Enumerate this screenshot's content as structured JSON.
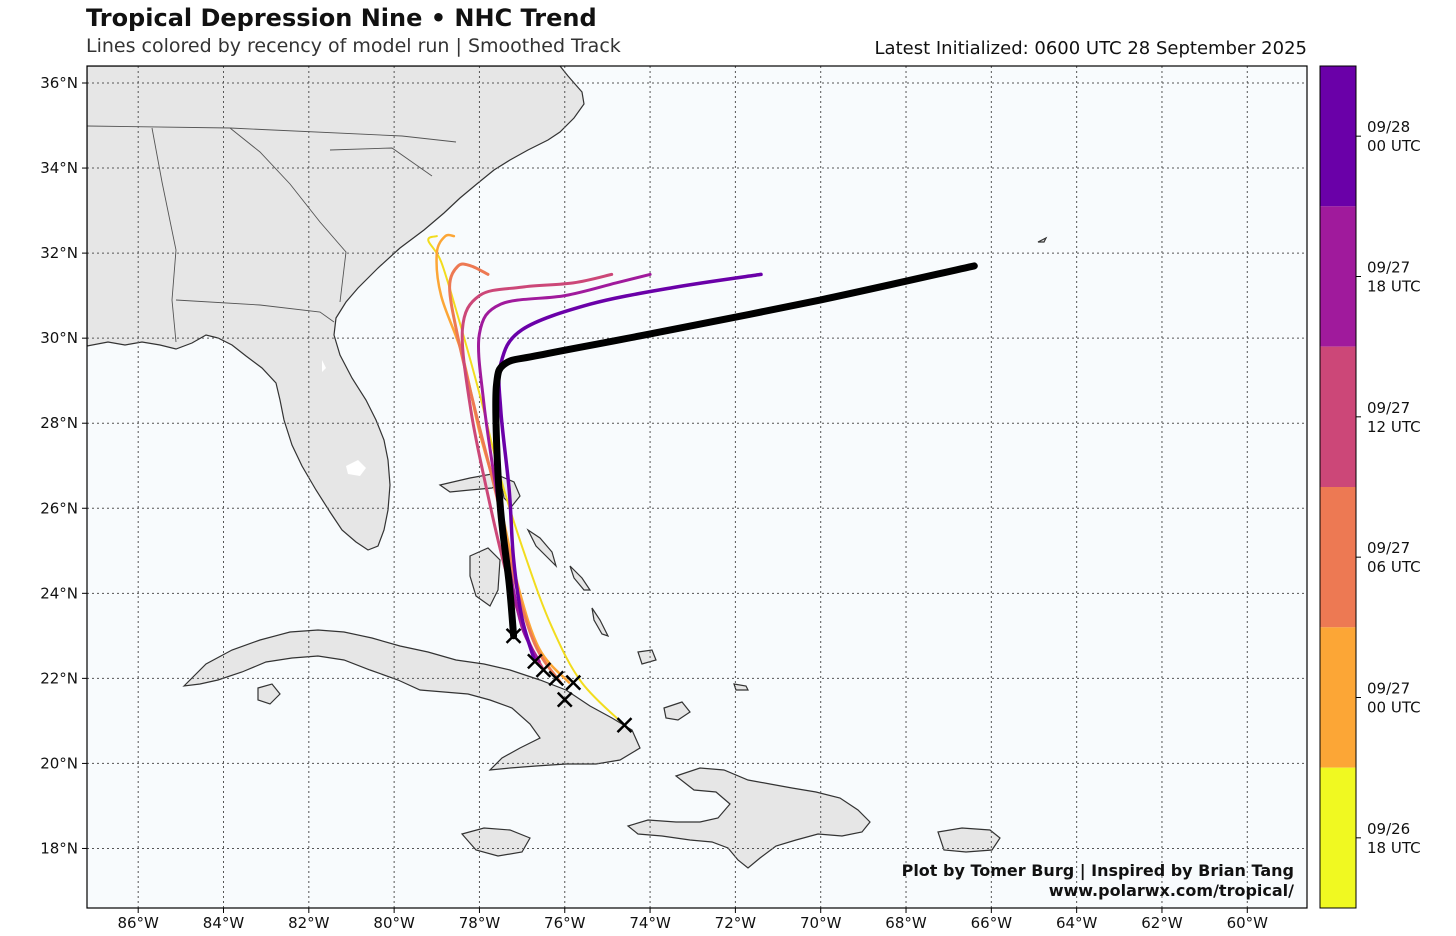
{
  "header": {
    "title": "Tropical Depression Nine • NHC Trend",
    "subtitle": "Lines colored by recency of model run | Smoothed Track",
    "initialized": "Latest Initialized: 0600 UTC 28 September 2025"
  },
  "map": {
    "lon_range": [
      -87.2,
      -58.6
    ],
    "lat_range": [
      16.6,
      36.4
    ],
    "lon_ticks": [
      "86°W",
      "84°W",
      "82°W",
      "80°W",
      "78°W",
      "76°W",
      "74°W",
      "72°W",
      "70°W",
      "68°W",
      "66°W",
      "64°W",
      "62°W",
      "60°W"
    ],
    "lat_ticks": [
      "18°N",
      "20°N",
      "22°N",
      "24°N",
      "26°N",
      "28°N",
      "30°N",
      "32°N",
      "34°N",
      "36°N"
    ],
    "grid": "dotted",
    "ocean_color": "#f8fbfd",
    "land_color": "#e6e6e6"
  },
  "credit": {
    "line1": "Plot by Tomer Burg | Inspired by Brian Tang",
    "line2": "www.polarwx.com/tropical/"
  },
  "colorbar": {
    "items": [
      {
        "l1": "09/28",
        "l2": "00 UTC",
        "color": "#6a00a8"
      },
      {
        "l1": "09/27",
        "l2": "18 UTC",
        "color": "#a01a9c"
      },
      {
        "l1": "09/27",
        "l2": "12 UTC",
        "color": "#cc4778"
      },
      {
        "l1": "09/27",
        "l2": "06 UTC",
        "color": "#ed7953"
      },
      {
        "l1": "09/27",
        "l2": "00 UTC",
        "color": "#fca636"
      },
      {
        "l1": "09/26",
        "l2": "18 UTC",
        "color": "#f0f921"
      }
    ]
  },
  "chart_data": {
    "type": "map-tracks",
    "latest_track_color": "#000000",
    "tracks": [
      {
        "run": "09/26 18 UTC",
        "color": "#f2dc1e",
        "width": 2,
        "points": [
          [
            -74.6,
            20.9
          ],
          [
            -75.6,
            21.9
          ],
          [
            -76.3,
            23.2
          ],
          [
            -76.9,
            24.8
          ],
          [
            -77.5,
            26.7
          ],
          [
            -78.0,
            28.7
          ],
          [
            -78.5,
            30.5
          ],
          [
            -78.9,
            31.8
          ],
          [
            -79.2,
            32.3
          ],
          [
            -79.0,
            32.4
          ]
        ]
      },
      {
        "run": "09/27 00 UTC",
        "color": "#fca636",
        "width": 2.5,
        "points": [
          [
            -75.9,
            21.9
          ],
          [
            -76.6,
            22.7
          ],
          [
            -77.1,
            24.2
          ],
          [
            -77.5,
            26.0
          ],
          [
            -78.0,
            27.8
          ],
          [
            -78.4,
            29.6
          ],
          [
            -78.9,
            31.0
          ],
          [
            -79.0,
            32.0
          ],
          [
            -78.8,
            32.4
          ],
          [
            -78.6,
            32.4
          ]
        ]
      },
      {
        "run": "09/27 06 UTC",
        "color": "#ed7953",
        "width": 3,
        "points": [
          [
            -76.1,
            21.9
          ],
          [
            -76.7,
            22.8
          ],
          [
            -77.2,
            24.4
          ],
          [
            -77.6,
            26.3
          ],
          [
            -78.1,
            28.3
          ],
          [
            -78.5,
            30.0
          ],
          [
            -78.7,
            31.2
          ],
          [
            -78.5,
            31.7
          ],
          [
            -78.2,
            31.7
          ],
          [
            -77.8,
            31.5
          ]
        ]
      },
      {
        "run": "09/27 12 UTC",
        "color": "#cc4778",
        "width": 3,
        "points": [
          [
            -76.5,
            22.2
          ],
          [
            -76.9,
            23.0
          ],
          [
            -77.4,
            24.6
          ],
          [
            -77.8,
            26.3
          ],
          [
            -78.2,
            28.3
          ],
          [
            -78.4,
            30.2
          ],
          [
            -78.0,
            31.0
          ],
          [
            -77.0,
            31.2
          ],
          [
            -75.8,
            31.3
          ],
          [
            -74.9,
            31.5
          ]
        ]
      },
      {
        "run": "09/27 18 UTC",
        "color": "#a01a9c",
        "width": 3,
        "points": [
          [
            -76.6,
            22.4
          ],
          [
            -77.0,
            23.2
          ],
          [
            -77.3,
            24.6
          ],
          [
            -77.6,
            26.4
          ],
          [
            -77.9,
            28.5
          ],
          [
            -78.0,
            30.1
          ],
          [
            -77.5,
            30.8
          ],
          [
            -76.0,
            31.0
          ],
          [
            -74.8,
            31.3
          ],
          [
            -74.0,
            31.5
          ]
        ]
      },
      {
        "run": "09/28 00 UTC",
        "color": "#6a00a8",
        "width": 3.5,
        "points": [
          [
            -76.7,
            22.4
          ],
          [
            -77.0,
            23.4
          ],
          [
            -77.2,
            24.8
          ],
          [
            -77.3,
            26.4
          ],
          [
            -77.5,
            28.3
          ],
          [
            -77.5,
            29.4
          ],
          [
            -77.0,
            30.2
          ],
          [
            -75.4,
            30.8
          ],
          [
            -73.4,
            31.2
          ],
          [
            -71.4,
            31.5
          ]
        ]
      },
      {
        "run": "0600 UTC 28 Sep (latest)",
        "color": "#000000",
        "width": 7,
        "points": [
          [
            -77.2,
            23.0
          ],
          [
            -77.3,
            24.2
          ],
          [
            -77.5,
            25.9
          ],
          [
            -77.6,
            27.6
          ],
          [
            -77.6,
            28.9
          ],
          [
            -77.4,
            29.4
          ],
          [
            -76.6,
            29.6
          ],
          [
            -74.0,
            30.1
          ],
          [
            -70.0,
            30.9
          ],
          [
            -66.4,
            31.7
          ]
        ]
      }
    ],
    "initial_positions": [
      [
        -77.2,
        23.0
      ],
      [
        -76.7,
        22.4
      ],
      [
        -76.5,
        22.2
      ],
      [
        -76.2,
        22.0
      ],
      [
        -75.8,
        21.9
      ],
      [
        -76.0,
        21.5
      ],
      [
        -74.6,
        20.9
      ]
    ]
  }
}
